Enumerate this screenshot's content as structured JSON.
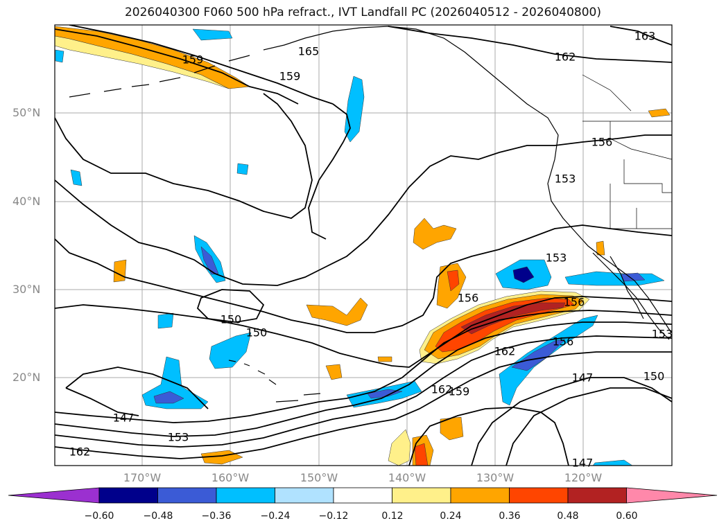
{
  "title": "2026040300 F060 500 hPa refract., IVT Landfall PC (2026040512 - 2026040800)",
  "lat_labels": [
    "50°N",
    "40°N",
    "30°N",
    "20°N"
  ],
  "lon_labels": [
    "170°W",
    "160°W",
    "150°W",
    "140°W",
    "130°W",
    "120°W"
  ],
  "colorbar": {
    "colors": [
      "#9b30d0",
      "#00008b",
      "#3b5bd6",
      "#00bfff",
      "#b0e2ff",
      "#ffffff",
      "#fff08a",
      "#ffa500",
      "#ff4500",
      "#b22222",
      "#ff88aa"
    ],
    "tick_labels": [
      "−0.60",
      "−0.48",
      "−0.36",
      "−0.24",
      "−0.12",
      "0.12",
      "0.24",
      "0.36",
      "0.48",
      "0.60"
    ]
  },
  "contour_labels": [
    "165",
    "159",
    "159",
    "162",
    "163",
    "156",
    "153",
    "153",
    "156",
    "156",
    "150",
    "150",
    "162",
    "162",
    "159",
    "156",
    "147",
    "150",
    "147",
    "153",
    "162",
    "147",
    "153"
  ]
}
